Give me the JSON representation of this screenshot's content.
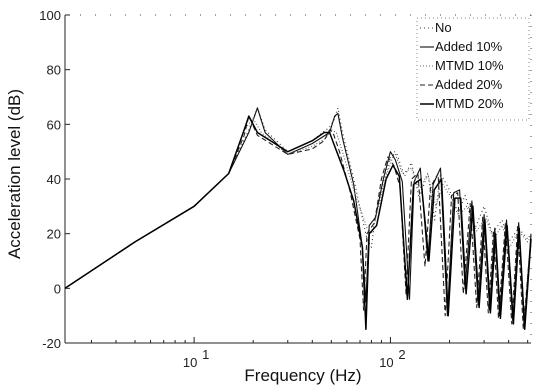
{
  "chart_data": {
    "type": "line",
    "title": "",
    "xlabel": "Frequency (Hz)",
    "ylabel": "Acceleration level (dB)",
    "x_scale": "log",
    "xlim": [
      2.2,
      520
    ],
    "ylim": [
      -20,
      100
    ],
    "y_ticks": [
      -20,
      0,
      20,
      40,
      60,
      80,
      100
    ],
    "x_ticks": [
      {
        "value": 10,
        "base": "10",
        "exp": "1"
      },
      {
        "value": 100,
        "base": "10",
        "exp": "2"
      }
    ],
    "grid": false,
    "legend_position": "top-right",
    "series": [
      {
        "name": "No",
        "color": "#333333",
        "dash": "1,3",
        "points": [
          [
            2.2,
            0
          ],
          [
            5,
            17
          ],
          [
            10,
            30
          ],
          [
            15,
            42
          ],
          [
            19,
            58
          ],
          [
            21,
            66
          ],
          [
            23,
            58
          ],
          [
            30,
            50
          ],
          [
            40,
            54
          ],
          [
            49,
            59
          ],
          [
            52,
            62
          ],
          [
            54,
            66
          ],
          [
            57,
            57
          ],
          [
            65,
            40
          ],
          [
            76,
            18
          ],
          [
            80,
            15
          ],
          [
            84,
            27
          ],
          [
            90,
            36
          ],
          [
            100,
            48
          ],
          [
            108,
            49
          ],
          [
            118,
            41
          ],
          [
            128,
            46
          ],
          [
            140,
            33
          ],
          [
            155,
            42
          ],
          [
            168,
            25
          ],
          [
            180,
            42
          ],
          [
            200,
            36
          ],
          [
            220,
            27
          ],
          [
            240,
            34
          ],
          [
            270,
            22
          ],
          [
            300,
            30
          ],
          [
            330,
            20
          ],
          [
            370,
            25
          ],
          [
            400,
            17
          ],
          [
            450,
            22
          ],
          [
            500,
            18
          ],
          [
            520,
            20
          ]
        ]
      },
      {
        "name": "Added 10%",
        "color": "#111111",
        "dash": "",
        "points": [
          [
            2.2,
            0
          ],
          [
            5,
            17
          ],
          [
            10,
            30
          ],
          [
            15,
            42
          ],
          [
            19,
            57
          ],
          [
            21,
            66
          ],
          [
            23,
            57
          ],
          [
            30,
            49
          ],
          [
            40,
            53
          ],
          [
            49,
            57
          ],
          [
            52,
            63
          ],
          [
            54,
            64
          ],
          [
            57,
            55
          ],
          [
            65,
            38
          ],
          [
            72,
            15
          ],
          [
            75,
            -5
          ],
          [
            78,
            23
          ],
          [
            84,
            26
          ],
          [
            92,
            40
          ],
          [
            100,
            50
          ],
          [
            106,
            47
          ],
          [
            115,
            39
          ],
          [
            125,
            -4
          ],
          [
            132,
            39
          ],
          [
            142,
            44
          ],
          [
            155,
            10
          ],
          [
            165,
            38
          ],
          [
            180,
            44
          ],
          [
            195,
            -10
          ],
          [
            210,
            35
          ],
          [
            225,
            36
          ],
          [
            240,
            0
          ],
          [
            260,
            32
          ],
          [
            280,
            -6
          ],
          [
            300,
            27
          ],
          [
            320,
            -8
          ],
          [
            340,
            22
          ],
          [
            360,
            -10
          ],
          [
            390,
            25
          ],
          [
            420,
            -12
          ],
          [
            450,
            24
          ],
          [
            480,
            -14
          ],
          [
            520,
            20
          ]
        ]
      },
      {
        "name": "MTMD 10%",
        "color": "#666666",
        "dash": "1,2",
        "points": [
          [
            2.2,
            0
          ],
          [
            5,
            17
          ],
          [
            10,
            30
          ],
          [
            15,
            42
          ],
          [
            18,
            58
          ],
          [
            20,
            62
          ],
          [
            22,
            57
          ],
          [
            30,
            49
          ],
          [
            40,
            52
          ],
          [
            47,
            55
          ],
          [
            50,
            58
          ],
          [
            53,
            57
          ],
          [
            57,
            50
          ],
          [
            65,
            36
          ],
          [
            76,
            22
          ],
          [
            80,
            20
          ],
          [
            85,
            27
          ],
          [
            95,
            41
          ],
          [
            105,
            50
          ],
          [
            115,
            42
          ],
          [
            128,
            44
          ],
          [
            140,
            36
          ],
          [
            155,
            42
          ],
          [
            170,
            30
          ],
          [
            185,
            38
          ],
          [
            205,
            33
          ],
          [
            225,
            27
          ],
          [
            245,
            30
          ],
          [
            275,
            21
          ],
          [
            305,
            26
          ],
          [
            335,
            18
          ],
          [
            370,
            23
          ],
          [
            405,
            15
          ],
          [
            450,
            21
          ],
          [
            500,
            17
          ],
          [
            520,
            19
          ]
        ]
      },
      {
        "name": "Added 20%",
        "color": "#222222",
        "dash": "5,3",
        "points": [
          [
            2.2,
            0
          ],
          [
            5,
            17
          ],
          [
            10,
            30
          ],
          [
            15,
            42
          ],
          [
            18,
            56
          ],
          [
            19,
            63
          ],
          [
            21,
            56
          ],
          [
            30,
            49
          ],
          [
            40,
            51
          ],
          [
            46,
            54
          ],
          [
            49,
            58
          ],
          [
            51,
            57
          ],
          [
            55,
            50
          ],
          [
            62,
            36
          ],
          [
            70,
            18
          ],
          [
            73,
            -8
          ],
          [
            76,
            20
          ],
          [
            83,
            24
          ],
          [
            90,
            40
          ],
          [
            97,
            48
          ],
          [
            104,
            45
          ],
          [
            112,
            37
          ],
          [
            120,
            -2
          ],
          [
            128,
            40
          ],
          [
            138,
            42
          ],
          [
            150,
            8
          ],
          [
            160,
            37
          ],
          [
            175,
            42
          ],
          [
            190,
            -10
          ],
          [
            205,
            34
          ],
          [
            220,
            35
          ],
          [
            235,
            -2
          ],
          [
            255,
            31
          ],
          [
            275,
            -7
          ],
          [
            295,
            26
          ],
          [
            315,
            -9
          ],
          [
            335,
            21
          ],
          [
            355,
            -11
          ],
          [
            385,
            24
          ],
          [
            415,
            -13
          ],
          [
            445,
            23
          ],
          [
            475,
            -15
          ],
          [
            520,
            19
          ]
        ]
      },
      {
        "name": "MTMD 20%",
        "color": "#000000",
        "dash": "",
        "points": [
          [
            2.2,
            0
          ],
          [
            5,
            17
          ],
          [
            10,
            30
          ],
          [
            15,
            42
          ],
          [
            18,
            58
          ],
          [
            19,
            63
          ],
          [
            21,
            57
          ],
          [
            30,
            50
          ],
          [
            40,
            54
          ],
          [
            46,
            57
          ],
          [
            49,
            57
          ],
          [
            52,
            52
          ],
          [
            58,
            43
          ],
          [
            65,
            32
          ],
          [
            72,
            15
          ],
          [
            75,
            -15
          ],
          [
            78,
            20
          ],
          [
            85,
            23
          ],
          [
            95,
            40
          ],
          [
            103,
            45
          ],
          [
            111,
            41
          ],
          [
            122,
            -4
          ],
          [
            131,
            38
          ],
          [
            143,
            40
          ],
          [
            157,
            10
          ],
          [
            167,
            36
          ],
          [
            182,
            40
          ],
          [
            197,
            -10
          ],
          [
            213,
            33
          ],
          [
            228,
            33
          ],
          [
            243,
            -2
          ],
          [
            263,
            30
          ],
          [
            283,
            -7
          ],
          [
            303,
            25
          ],
          [
            323,
            -9
          ],
          [
            343,
            20
          ],
          [
            363,
            -11
          ],
          [
            393,
            23
          ],
          [
            423,
            -13
          ],
          [
            453,
            22
          ],
          [
            483,
            -15
          ],
          [
            520,
            18
          ]
        ]
      }
    ]
  }
}
